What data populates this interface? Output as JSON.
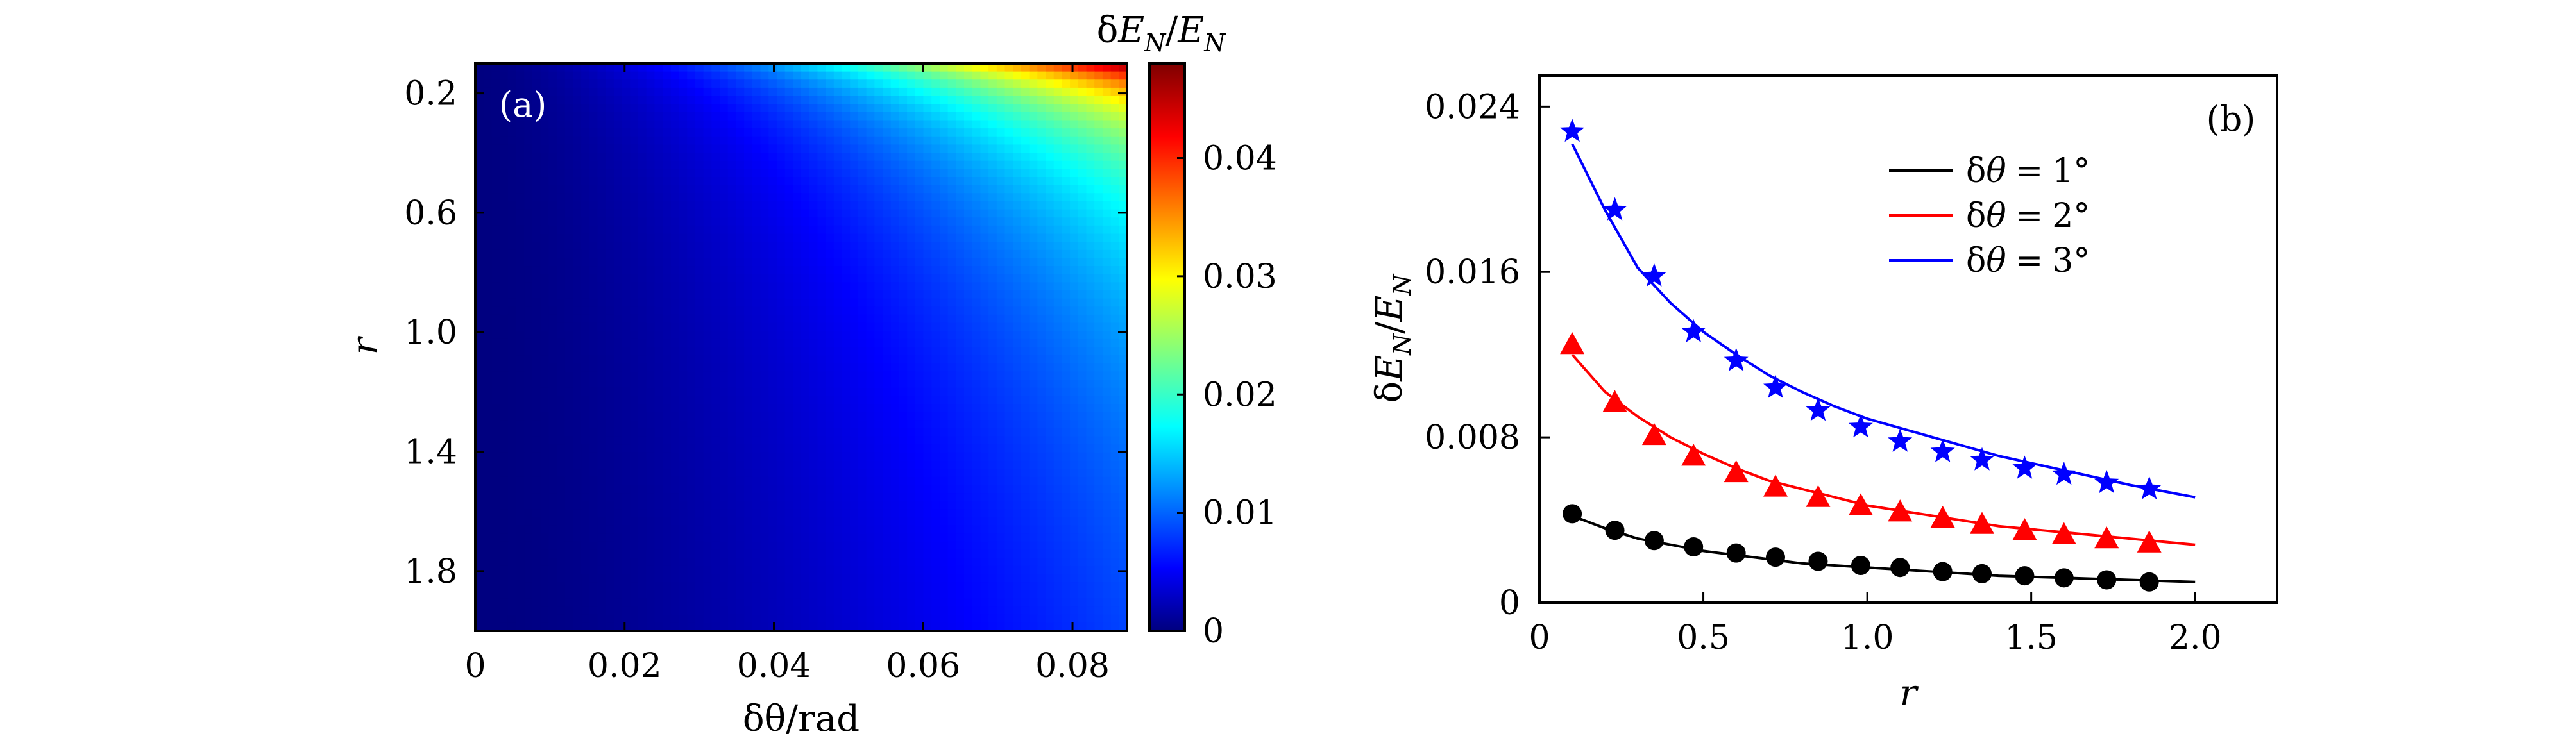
{
  "chart_data": [
    {
      "type": "heatmap",
      "panel_label": "(a)",
      "xlabel": "δθ/rad",
      "ylabel": "r",
      "colorbar_label": "δE_N/E_N",
      "colorbar_label_parts": {
        "d": "δ",
        "e1": "E",
        "s1": "N",
        "slash": "/",
        "e2": "E",
        "s2": "N"
      },
      "xlim": [
        0,
        0.0873
      ],
      "ylim": [
        0.1,
        2.0
      ],
      "y_inverted": true,
      "x_ticks": [
        "0",
        "0.02",
        "0.04",
        "0.06",
        "0.08"
      ],
      "y_ticks": [
        "0.2",
        "0.6",
        "1.0",
        "1.4",
        "1.8"
      ],
      "colorbar_ticks": [
        "0",
        "0.01",
        "0.02",
        "0.03",
        "0.04"
      ],
      "colorbar_range": [
        0,
        0.048
      ],
      "colormap": "jet",
      "description_of_values": "value increases with δθ and decreases with r; max ≈0.048 at δθ=0.087, r=0.1"
    },
    {
      "type": "line",
      "panel_label": "(b)",
      "xlabel": "r",
      "ylabel": "δE_N/E_N",
      "ylabel_parts": {
        "d": "δ",
        "e1": "E",
        "s1": "N",
        "slash": "/",
        "e2": "E",
        "s2": "N"
      },
      "xlim": [
        0,
        2.25
      ],
      "ylim": [
        0,
        0.0255
      ],
      "x_ticks": [
        "0",
        "0.5",
        "1.0",
        "1.5",
        "2.0"
      ],
      "y_ticks": [
        "0",
        "0.008",
        "0.016",
        "0.024"
      ],
      "legend_position": "top-right",
      "series": [
        {
          "name": "δθ = 1°",
          "legend_parts": {
            "d": "δ",
            "t": "θ",
            "eq": "=",
            "val": "1°"
          },
          "color": "#000000",
          "marker": "circle",
          "line_x": [
            0.1,
            0.2,
            0.3,
            0.4,
            0.5,
            0.6,
            0.7,
            0.8,
            0.9,
            1.0,
            1.2,
            1.4,
            1.6,
            1.8,
            2.0
          ],
          "line_y": [
            0.0042,
            0.0036,
            0.0031,
            0.0028,
            0.0025,
            0.0023,
            0.0021,
            0.0019,
            0.0018,
            0.0017,
            0.0015,
            0.0013,
            0.0012,
            0.0011,
            0.001
          ],
          "marker_x": [
            0.1,
            0.23,
            0.35,
            0.47,
            0.6,
            0.72,
            0.85,
            0.98,
            1.1,
            1.23,
            1.35,
            1.48,
            1.6,
            1.73,
            1.86
          ],
          "marker_y": [
            0.0043,
            0.0035,
            0.003,
            0.0027,
            0.0024,
            0.0022,
            0.002,
            0.0018,
            0.0017,
            0.0015,
            0.0014,
            0.0013,
            0.0012,
            0.0011,
            0.001
          ]
        },
        {
          "name": "δθ = 2°",
          "legend_parts": {
            "d": "δ",
            "t": "θ",
            "eq": "=",
            "val": "2°"
          },
          "color": "#ff0000",
          "marker": "triangle",
          "line_x": [
            0.1,
            0.2,
            0.3,
            0.4,
            0.5,
            0.6,
            0.7,
            0.8,
            0.9,
            1.0,
            1.2,
            1.4,
            1.6,
            1.8,
            2.0
          ],
          "line_y": [
            0.012,
            0.0102,
            0.009,
            0.008,
            0.0072,
            0.0065,
            0.0059,
            0.0055,
            0.0051,
            0.0047,
            0.0042,
            0.0037,
            0.0034,
            0.0031,
            0.0028
          ],
          "marker_x": [
            0.1,
            0.23,
            0.35,
            0.47,
            0.6,
            0.72,
            0.85,
            0.98,
            1.1,
            1.23,
            1.35,
            1.48,
            1.6,
            1.73,
            1.86
          ],
          "marker_y": [
            0.0125,
            0.0097,
            0.0081,
            0.0071,
            0.0063,
            0.0056,
            0.0051,
            0.0047,
            0.0044,
            0.0041,
            0.0038,
            0.0035,
            0.0033,
            0.0031,
            0.0029
          ]
        },
        {
          "name": "δθ = 3°",
          "legend_parts": {
            "d": "δ",
            "t": "θ",
            "eq": "=",
            "val": "3°"
          },
          "color": "#0000ff",
          "marker": "star",
          "line_x": [
            0.1,
            0.2,
            0.3,
            0.4,
            0.5,
            0.6,
            0.7,
            0.8,
            0.9,
            1.0,
            1.2,
            1.4,
            1.6,
            1.8,
            2.0
          ],
          "line_y": [
            0.0222,
            0.019,
            0.0162,
            0.0145,
            0.0131,
            0.012,
            0.011,
            0.0102,
            0.0095,
            0.0089,
            0.008,
            0.0071,
            0.0064,
            0.0057,
            0.0051
          ],
          "marker_x": [
            0.1,
            0.23,
            0.35,
            0.47,
            0.6,
            0.72,
            0.85,
            0.98,
            1.1,
            1.23,
            1.35,
            1.48,
            1.6,
            1.73,
            1.86
          ],
          "marker_y": [
            0.0228,
            0.019,
            0.0158,
            0.0131,
            0.0117,
            0.0104,
            0.0093,
            0.0085,
            0.0078,
            0.0073,
            0.0069,
            0.0065,
            0.0062,
            0.0058,
            0.0055
          ]
        }
      ]
    }
  ]
}
